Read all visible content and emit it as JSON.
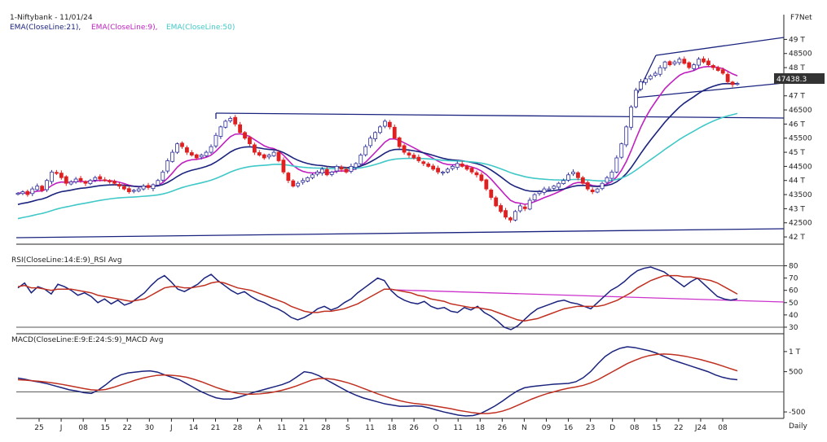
{
  "header": {
    "title": "1-Niftybank - 11/01/24",
    "brand": "F7Net",
    "legend": [
      {
        "label": "EMA(CloseLine:21),",
        "color": "#1a237e"
      },
      {
        "label": "EMA(CloseLine:9),",
        "color": "#c020c0"
      },
      {
        "label": "EMA(CloseLine:50)",
        "color": "#40c8c8"
      }
    ],
    "last_price": "47438.3",
    "period": "Daily"
  },
  "colors": {
    "up": "#2f2f9a",
    "down": "#e02020",
    "ema21": "#1a237e",
    "ema9": "#c020c0",
    "ema50": "#40c8c8",
    "rsi": "#1a237e",
    "rsi_avg": "#c03020",
    "macd": "#1a237e",
    "macd_avg": "#c03020",
    "trend": "#1a237e",
    "rsi_trend": "#cc33cc"
  },
  "chart_data": [
    {
      "type": "candlestick",
      "title": "1-Niftybank - 11/01/24",
      "y_ticks": [
        "49 T",
        "48500",
        "48 T",
        "47 T",
        "46500",
        "46 T",
        "45500",
        "45 T",
        "44500",
        "44 T",
        "43500",
        "43 T",
        "42500",
        "42 T"
      ],
      "y_tick_values": [
        49000,
        48500,
        48000,
        47000,
        46500,
        46000,
        45500,
        45000,
        44500,
        44000,
        43500,
        43000,
        42500,
        42000
      ],
      "ylim": [
        41800,
        49300
      ],
      "n_bars": 150,
      "closes": [
        43550,
        43600,
        43500,
        43700,
        43800,
        43650,
        44000,
        44300,
        44250,
        44100,
        43900,
        43950,
        44050,
        44000,
        43900,
        44000,
        44100,
        44050,
        44000,
        43950,
        43900,
        43800,
        43700,
        43600,
        43650,
        43700,
        43800,
        43750,
        43850,
        44000,
        44300,
        44700,
        45000,
        45300,
        45200,
        45000,
        44900,
        44800,
        44900,
        45000,
        45200,
        45600,
        45900,
        46100,
        46200,
        46000,
        45700,
        45500,
        45300,
        45000,
        44900,
        44800,
        44900,
        45000,
        44700,
        44300,
        44000,
        43800,
        43900,
        44000,
        44100,
        44200,
        44300,
        44400,
        44200,
        44300,
        44500,
        44400,
        44300,
        44500,
        44600,
        44900,
        45200,
        45500,
        45700,
        45900,
        46100,
        45900,
        45500,
        45200,
        45000,
        44900,
        44800,
        44700,
        44600,
        44500,
        44400,
        44300,
        44300,
        44400,
        44500,
        44600,
        44500,
        44400,
        44300,
        44200,
        44000,
        43700,
        43400,
        43100,
        42900,
        42700,
        42600,
        42900,
        43100,
        43000,
        43300,
        43500,
        43600,
        43700,
        43700,
        43800,
        43900,
        44000,
        44200,
        44300,
        44100,
        43900,
        43700,
        43600,
        43700,
        43900,
        44100,
        44300,
        44800,
        45300,
        45900,
        46600,
        47200,
        47500,
        47600,
        47700,
        47800,
        48000,
        48200,
        48100,
        48200,
        48300,
        48150,
        48000,
        48100,
        48300,
        48200,
        48100,
        48000,
        47900,
        47800,
        47500,
        47400,
        47438
      ]
    },
    {
      "type": "line",
      "title": "RSI(CloseLine:14:E:9)_RSI Avg",
      "y_ticks": [
        "80",
        "70",
        "60",
        "50",
        "40",
        "30"
      ],
      "y_tick_values": [
        80,
        70,
        60,
        50,
        40,
        30
      ],
      "ylim": [
        26,
        83
      ],
      "series": [
        {
          "name": "RSI",
          "values": [
            62,
            66,
            58,
            63,
            61,
            57,
            65,
            63,
            60,
            56,
            58,
            55,
            50,
            53,
            49,
            52,
            48,
            50,
            54,
            58,
            64,
            69,
            72,
            67,
            61,
            59,
            62,
            65,
            70,
            73,
            68,
            64,
            60,
            57,
            59,
            55,
            52,
            50,
            47,
            45,
            42,
            38,
            36,
            38,
            41,
            45,
            47,
            44,
            46,
            50,
            53,
            58,
            62,
            66,
            70,
            68,
            60,
            55,
            52,
            50,
            49,
            51,
            47,
            45,
            46,
            43,
            42,
            46,
            44,
            47,
            42,
            39,
            35,
            30,
            28,
            31,
            36,
            41,
            45,
            47,
            49,
            51,
            52,
            50,
            49,
            47,
            45,
            50,
            55,
            60,
            63,
            67,
            72,
            76,
            78,
            79,
            77,
            75,
            71,
            67,
            63,
            67,
            70,
            65,
            60,
            55,
            53,
            52,
            53
          ]
        },
        {
          "name": "Avg",
          "values": [
            63,
            64,
            62,
            62,
            61,
            60,
            61,
            61,
            61,
            60,
            59,
            58,
            56,
            55,
            54,
            53,
            52,
            51,
            52,
            53,
            56,
            59,
            62,
            63,
            63,
            62,
            62,
            63,
            64,
            66,
            67,
            66,
            64,
            62,
            61,
            60,
            58,
            56,
            54,
            52,
            50,
            47,
            45,
            43,
            42,
            42,
            43,
            43,
            44,
            45,
            47,
            49,
            52,
            55,
            58,
            61,
            61,
            60,
            59,
            58,
            56,
            55,
            53,
            52,
            51,
            49,
            48,
            47,
            46,
            46,
            45,
            44,
            42,
            40,
            38,
            36,
            35,
            36,
            37,
            39,
            41,
            43,
            45,
            46,
            47,
            47,
            47,
            47,
            48,
            50,
            52,
            55,
            58,
            62,
            65,
            68,
            70,
            72,
            72,
            72,
            71,
            71,
            70,
            69,
            68,
            66,
            63,
            60,
            57
          ]
        }
      ]
    },
    {
      "type": "line",
      "title": "MACD(CloseLine:E:9:E:24:S:9)_MACD Avg",
      "y_ticks": [
        "1 T",
        "500",
        "-500"
      ],
      "y_tick_values": [
        1000,
        500,
        -500
      ],
      "ylim": [
        -620,
        1200
      ],
      "series": [
        {
          "name": "MACD",
          "values": [
            340,
            310,
            270,
            240,
            200,
            150,
            100,
            50,
            20,
            -20,
            -40,
            50,
            180,
            330,
            420,
            470,
            490,
            510,
            520,
            490,
            420,
            360,
            300,
            200,
            100,
            0,
            -80,
            -150,
            -180,
            -180,
            -140,
            -80,
            -20,
            30,
            80,
            130,
            180,
            250,
            370,
            500,
            470,
            400,
            300,
            200,
            100,
            0,
            -80,
            -150,
            -200,
            -250,
            -300,
            -330,
            -360,
            -360,
            -350,
            -360,
            -400,
            -450,
            -500,
            -540,
            -580,
            -600,
            -590,
            -540,
            -450,
            -350,
            -230,
            -100,
            20,
            100,
            130,
            150,
            170,
            190,
            200,
            210,
            250,
            350,
            500,
            700,
            880,
            1000,
            1080,
            1120,
            1100,
            1060,
            1020,
            960,
            880,
            800,
            740,
            680,
            620,
            560,
            500,
            420,
            360,
            320,
            300
          ]
        },
        {
          "name": "Avg",
          "values": [
            300,
            290,
            275,
            260,
            240,
            215,
            185,
            150,
            115,
            80,
            50,
            40,
            60,
            110,
            170,
            230,
            290,
            340,
            380,
            410,
            420,
            410,
            390,
            360,
            310,
            250,
            180,
            110,
            50,
            0,
            -40,
            -60,
            -60,
            -50,
            -30,
            0,
            40,
            90,
            150,
            220,
            290,
            330,
            330,
            310,
            270,
            220,
            160,
            90,
            20,
            -50,
            -110,
            -170,
            -220,
            -260,
            -290,
            -310,
            -330,
            -360,
            -390,
            -420,
            -460,
            -490,
            -520,
            -540,
            -540,
            -520,
            -480,
            -420,
            -340,
            -260,
            -180,
            -110,
            -50,
            0,
            50,
            90,
            120,
            160,
            220,
            300,
            400,
            500,
            600,
            700,
            780,
            850,
            900,
            930,
            940,
            930,
            910,
            880,
            840,
            800,
            750,
            700,
            640,
            580,
            520
          ]
        }
      ]
    }
  ],
  "x_labels": [
    "25",
    "J",
    "08",
    "15",
    "22",
    "30",
    "J",
    "14",
    "21",
    "28",
    "A",
    "11",
    "21",
    "28",
    "S",
    "11",
    "18",
    "26",
    "O",
    "11",
    "18",
    "26",
    "N",
    "09",
    "16",
    "23",
    "D",
    "08",
    "15",
    "22",
    "J24",
    "08"
  ]
}
